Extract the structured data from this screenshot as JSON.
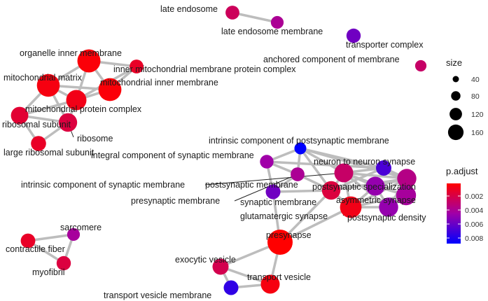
{
  "chart_data": {
    "type": "network",
    "nodes": [
      {
        "id": "late-endosome",
        "label": "late endosome",
        "size": 20,
        "p_adjust": 0.0025
      },
      {
        "id": "late-endosome-membrane",
        "label": "late endosome membrane",
        "size": 14,
        "p_adjust": 0.004
      },
      {
        "id": "transporter-complex",
        "label": "transporter complex",
        "size": 22,
        "p_adjust": 0.0058
      },
      {
        "id": "anchored-component-of-membrane",
        "label": "anchored component of membrane",
        "size": 8,
        "p_adjust": 0.0028
      },
      {
        "id": "organelle-inner-membrane",
        "label": "organelle inner membrane",
        "size": 110,
        "p_adjust": 0.0004
      },
      {
        "id": "inner-mitochondrial-membrane-protein-complex",
        "label": "inner mitochondrial membrane protein complex",
        "size": 20,
        "p_adjust": 0.0012
      },
      {
        "id": "mitochondrial-matrix",
        "label": "mitochondrial matrix",
        "size": 105,
        "p_adjust": 0.0006
      },
      {
        "id": "mitochondrial-inner-membrane",
        "label": "mitochondrial inner membrane",
        "size": 108,
        "p_adjust": 0.0004
      },
      {
        "id": "mitochondrial-protein-complex",
        "label": "mitochondrial protein complex",
        "size": 75,
        "p_adjust": 0.0008
      },
      {
        "id": "ribosomal-subunit",
        "label": "ribosomal subunit",
        "size": 45,
        "p_adjust": 0.0015
      },
      {
        "id": "ribosome",
        "label": "ribosome",
        "size": 55,
        "p_adjust": 0.0018
      },
      {
        "id": "large-ribosomal-subunit",
        "label": "large ribosomal subunit",
        "size": 28,
        "p_adjust": 0.0012
      },
      {
        "id": "intrinsic-component-of-postsynaptic-membrane",
        "label": "intrinsic component of postsynaptic membrane",
        "size": 10,
        "p_adjust": 0.0088
      },
      {
        "id": "integral-component-of-synaptic-membrane",
        "label": "integral component of synaptic membrane",
        "size": 18,
        "p_adjust": 0.0045
      },
      {
        "id": "neuron-to-neuron-synapse",
        "label": "neuron to neuron synapse",
        "size": 60,
        "p_adjust": 0.0028
      },
      {
        "id": "intrinsic-component-of-synaptic-membrane",
        "label": "intrinsic component of synaptic membrane",
        "size": 20,
        "p_adjust": 0.004
      },
      {
        "id": "postsynaptic-membrane",
        "label": "postsynaptic membrane",
        "size": 30,
        "p_adjust": 0.0068
      },
      {
        "id": "postsynaptic-specialization",
        "label": "postsynaptic specialization",
        "size": 62,
        "p_adjust": 0.0036
      },
      {
        "id": "presynaptic-membrane",
        "label": "presynaptic membrane",
        "size": 25,
        "p_adjust": 0.0058
      },
      {
        "id": "synaptic-membrane",
        "label": "synaptic membrane",
        "size": 55,
        "p_adjust": 0.0018
      },
      {
        "id": "asymmetric-synapse",
        "label": "asymmetric synapse",
        "size": 70,
        "p_adjust": 0.0042
      },
      {
        "id": "glutamatergic-synapse",
        "label": "glutamatergic synapse",
        "size": 90,
        "p_adjust": 0.0008
      },
      {
        "id": "postsynaptic-density",
        "label": "postsynaptic density",
        "size": 62,
        "p_adjust": 0.0048
      },
      {
        "id": "presynapse",
        "label": "presynapse",
        "size": 140,
        "p_adjust": 0.0002
      },
      {
        "id": "sarcomere",
        "label": "sarcomere",
        "size": 14,
        "p_adjust": 0.0042
      },
      {
        "id": "contractile-fiber",
        "label": "contractile fiber",
        "size": 24,
        "p_adjust": 0.0012
      },
      {
        "id": "myofibril",
        "label": "myofibril",
        "size": 22,
        "p_adjust": 0.0018
      },
      {
        "id": "exocytic-vesicle",
        "label": "exocytic vesicle",
        "size": 35,
        "p_adjust": 0.0022
      },
      {
        "id": "transport-vesicle",
        "label": "transport vesicle",
        "size": 60,
        "p_adjust": 0.0006
      },
      {
        "id": "transport-vesicle-membrane",
        "label": "transport vesicle membrane",
        "size": 25,
        "p_adjust": 0.0075
      },
      {
        "id": "extra-synaptic-node",
        "label": "",
        "size": 60,
        "p_adjust": 0.0048
      }
    ],
    "edges": [
      [
        "late-endosome",
        "late-endosome-membrane"
      ],
      [
        "organelle-inner-membrane",
        "inner-mitochondrial-membrane-protein-complex"
      ],
      [
        "organelle-inner-membrane",
        "mitochondrial-matrix"
      ],
      [
        "organelle-inner-membrane",
        "mitochondrial-inner-membrane"
      ],
      [
        "organelle-inner-membrane",
        "mitochondrial-protein-complex"
      ],
      [
        "inner-mitochondrial-membrane-protein-complex",
        "mitochondrial-inner-membrane"
      ],
      [
        "inner-mitochondrial-membrane-protein-complex",
        "mitochondrial-protein-complex"
      ],
      [
        "mitochondrial-matrix",
        "mitochondrial-inner-membrane"
      ],
      [
        "mitochondrial-matrix",
        "mitochondrial-protein-complex"
      ],
      [
        "mitochondrial-matrix",
        "ribosomal-subunit"
      ],
      [
        "mitochondrial-matrix",
        "ribosome"
      ],
      [
        "mitochondrial-inner-membrane",
        "mitochondrial-protein-complex"
      ],
      [
        "mitochondrial-protein-complex",
        "ribosomal-subunit"
      ],
      [
        "mitochondrial-protein-complex",
        "ribosome"
      ],
      [
        "ribosomal-subunit",
        "ribosome"
      ],
      [
        "ribosomal-subunit",
        "large-ribosomal-subunit"
      ],
      [
        "ribosome",
        "large-ribosomal-subunit"
      ],
      [
        "intrinsic-component-of-postsynaptic-membrane",
        "integral-component-of-synaptic-membrane"
      ],
      [
        "intrinsic-component-of-postsynaptic-membrane",
        "intrinsic-component-of-synaptic-membrane"
      ],
      [
        "intrinsic-component-of-postsynaptic-membrane",
        "postsynaptic-membrane"
      ],
      [
        "intrinsic-component-of-postsynaptic-membrane",
        "neuron-to-neuron-synapse"
      ],
      [
        "intrinsic-component-of-postsynaptic-membrane",
        "postsynaptic-specialization"
      ],
      [
        "intrinsic-component-of-postsynaptic-membrane",
        "synaptic-membrane"
      ],
      [
        "integral-component-of-synaptic-membrane",
        "intrinsic-component-of-synaptic-membrane"
      ],
      [
        "integral-component-of-synaptic-membrane",
        "presynaptic-membrane"
      ],
      [
        "integral-component-of-synaptic-membrane",
        "postsynaptic-membrane"
      ],
      [
        "intrinsic-component-of-synaptic-membrane",
        "presynaptic-membrane"
      ],
      [
        "intrinsic-component-of-synaptic-membrane",
        "synaptic-membrane"
      ],
      [
        "postsynaptic-membrane",
        "synaptic-membrane"
      ],
      [
        "postsynaptic-membrane",
        "neuron-to-neuron-synapse"
      ],
      [
        "postsynaptic-membrane",
        "postsynaptic-specialization"
      ],
      [
        "presynaptic-membrane",
        "synaptic-membrane"
      ],
      [
        "presynaptic-membrane",
        "presynapse"
      ],
      [
        "synaptic-membrane",
        "neuron-to-neuron-synapse"
      ],
      [
        "synaptic-membrane",
        "postsynaptic-specialization"
      ],
      [
        "synaptic-membrane",
        "glutamatergic-synapse"
      ],
      [
        "synaptic-membrane",
        "presynapse"
      ],
      [
        "neuron-to-neuron-synapse",
        "postsynaptic-specialization"
      ],
      [
        "neuron-to-neuron-synapse",
        "asymmetric-synapse"
      ],
      [
        "neuron-to-neuron-synapse",
        "glutamatergic-synapse"
      ],
      [
        "neuron-to-neuron-synapse",
        "postsynaptic-density"
      ],
      [
        "neuron-to-neuron-synapse",
        "extra-synaptic-node"
      ],
      [
        "postsynaptic-specialization",
        "asymmetric-synapse"
      ],
      [
        "postsynaptic-specialization",
        "glutamatergic-synapse"
      ],
      [
        "postsynaptic-specialization",
        "postsynaptic-density"
      ],
      [
        "postsynaptic-specialization",
        "extra-synaptic-node"
      ],
      [
        "asymmetric-synapse",
        "glutamatergic-synapse"
      ],
      [
        "asymmetric-synapse",
        "postsynaptic-density"
      ],
      [
        "asymmetric-synapse",
        "extra-synaptic-node"
      ],
      [
        "glutamatergic-synapse",
        "postsynaptic-density"
      ],
      [
        "glutamatergic-synapse",
        "presynapse"
      ],
      [
        "glutamatergic-synapse",
        "extra-synaptic-node"
      ],
      [
        "postsynaptic-density",
        "extra-synaptic-node"
      ],
      [
        "presynapse",
        "exocytic-vesicle"
      ],
      [
        "presynapse",
        "transport-vesicle"
      ],
      [
        "exocytic-vesicle",
        "transport-vesicle"
      ],
      [
        "exocytic-vesicle",
        "transport-vesicle-membrane"
      ],
      [
        "transport-vesicle",
        "transport-vesicle-membrane"
      ],
      [
        "sarcomere",
        "contractile-fiber"
      ],
      [
        "sarcomere",
        "myofibril"
      ],
      [
        "contractile-fiber",
        "myofibril"
      ]
    ],
    "size_legend": {
      "title": "size",
      "values": [
        40,
        80,
        120,
        160
      ]
    },
    "color_legend": {
      "title": "p.adjust",
      "ticks": [
        "0.002",
        "0.004",
        "0.006",
        "0.008"
      ],
      "tick_values": [
        0.002,
        0.004,
        0.006,
        0.008
      ],
      "min": 0.0002,
      "max": 0.0088,
      "low_color": "#ff0000",
      "high_color": "#0000ff"
    },
    "edge_color": "#bdbdbd",
    "grid": false
  }
}
